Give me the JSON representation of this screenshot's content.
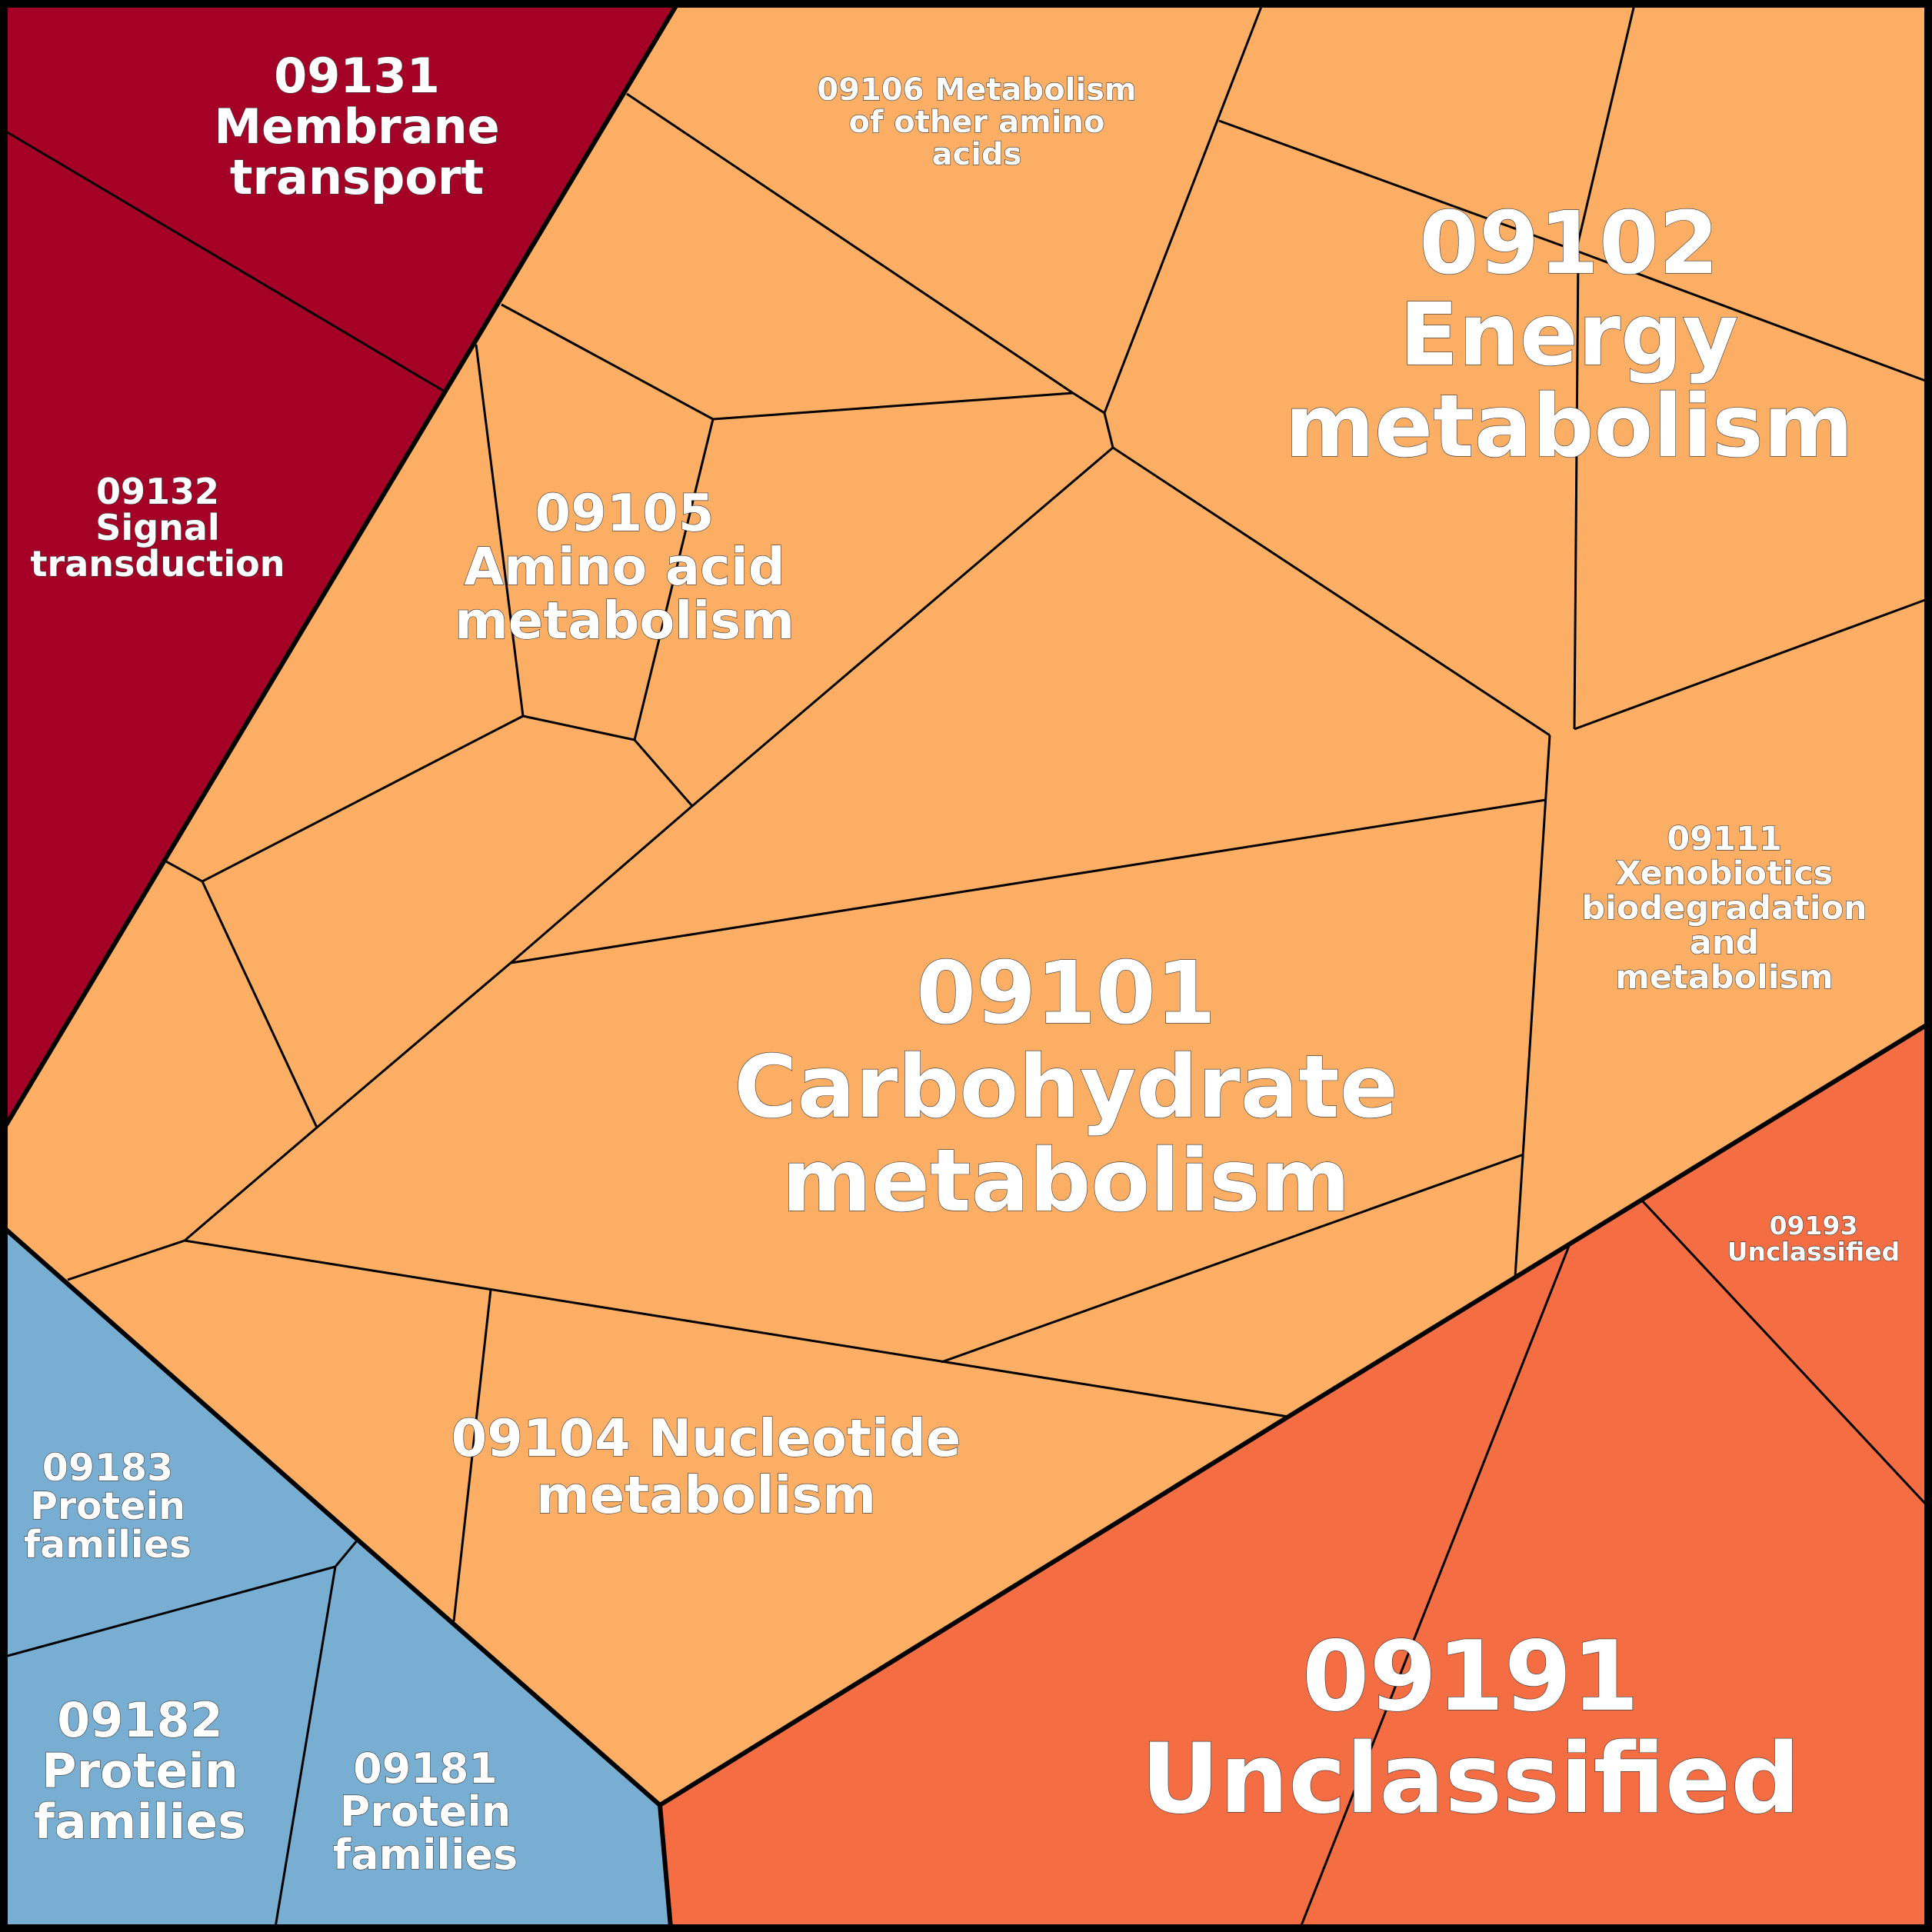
{
  "colors": {
    "metabolism": "#fbae64",
    "environmental_information_processing": "#a50026",
    "genetic_information_processing": "#79aed3",
    "unclassified": "#f46d43",
    "cell_border": "#000000",
    "group_border": "#000000",
    "label_text": "#ffffff"
  },
  "labels": {
    "l09131": [
      "09131",
      "Membrane",
      "transport"
    ],
    "l09132": [
      "09132",
      "Signal",
      "transduction"
    ],
    "l09106": [
      "09106 Metabolism",
      "of other amino",
      "acids"
    ],
    "l09102": [
      "09102",
      "Energy",
      "metabolism"
    ],
    "l09105": [
      "09105",
      "Amino acid",
      "metabolism"
    ],
    "l09111": [
      "09111",
      "Xenobiotics",
      "biodegradation",
      "and",
      "metabolism"
    ],
    "l09101": [
      "09101",
      "Carbohydrate",
      "metabolism"
    ],
    "l09193": [
      "09193",
      "Unclassified"
    ],
    "l09104": [
      "09104 Nucleotide",
      "metabolism"
    ],
    "l09183": [
      "09183",
      "Protein",
      "families"
    ],
    "l09182": [
      "09182",
      "Protein",
      "families"
    ],
    "l09181": [
      "09181",
      "Protein",
      "families"
    ],
    "l09191": [
      "09191",
      "Unclassified"
    ]
  }
}
